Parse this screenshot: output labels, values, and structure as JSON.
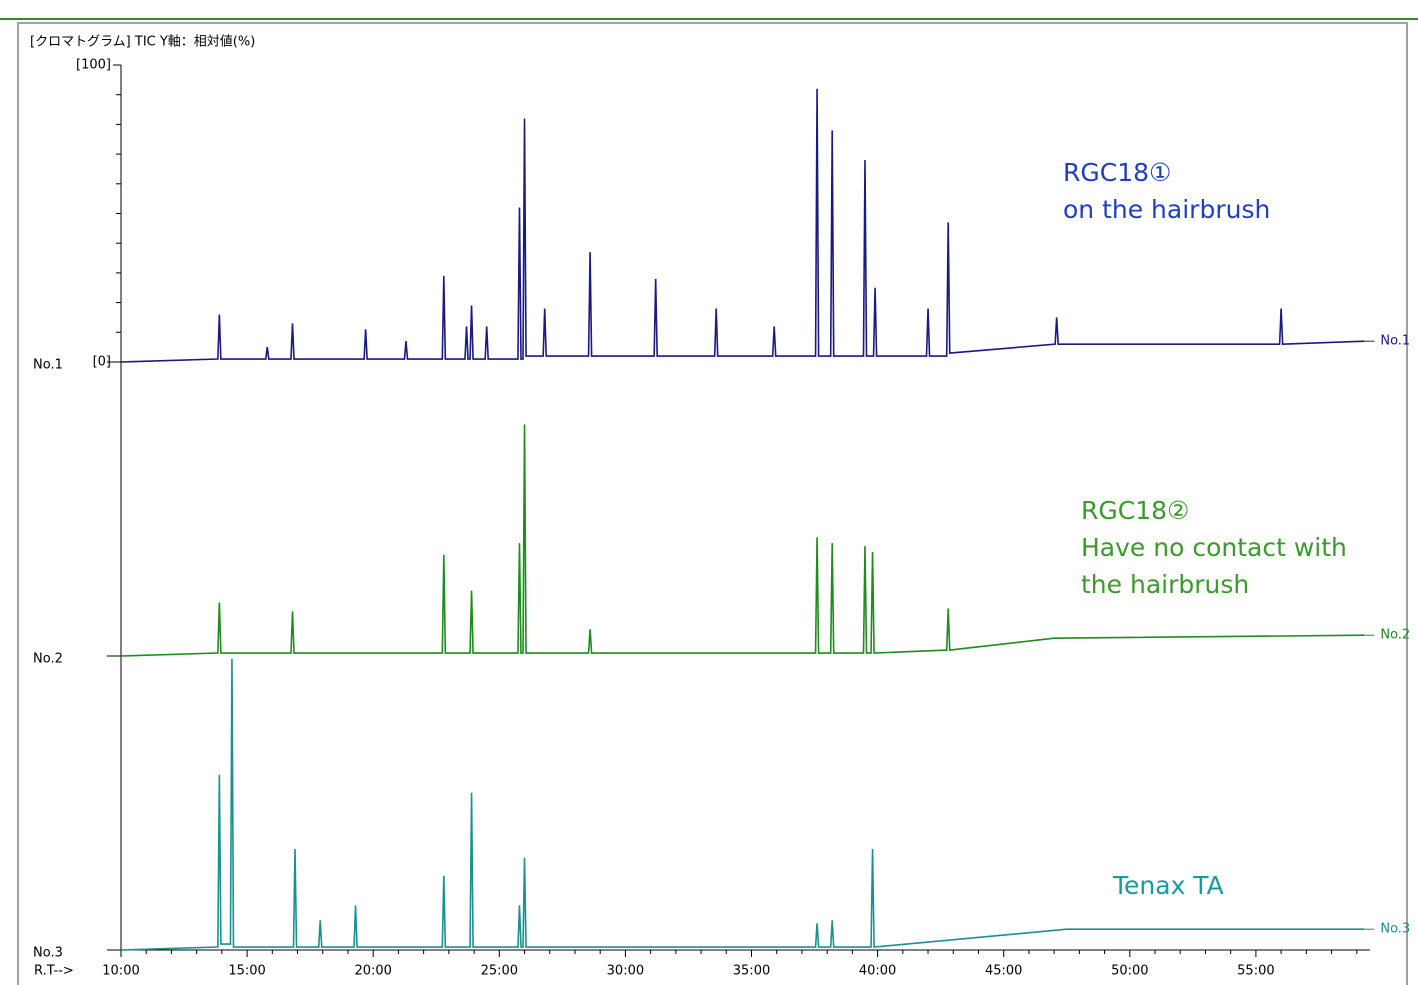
{
  "chart_data": {
    "type": "line",
    "title": "[クロマトグラム]  TIC   Y軸：相対値(%)",
    "x_label": "R.T-->",
    "xlim": [
      10,
      59.4
    ],
    "xticks": [
      {
        "value": 10,
        "label": "10:00"
      },
      {
        "value": 15,
        "label": "15:00"
      },
      {
        "value": 20,
        "label": "20:00"
      },
      {
        "value": 25,
        "label": "25:00"
      },
      {
        "value": 30,
        "label": "30:00"
      },
      {
        "value": 35,
        "label": "35:00"
      },
      {
        "value": 40,
        "label": "40:00"
      },
      {
        "value": 45,
        "label": "45:00"
      },
      {
        "value": 50,
        "label": "50:00"
      },
      {
        "value": 55,
        "label": "55:00"
      }
    ],
    "xminor": [
      11,
      12,
      13,
      14,
      16,
      17,
      18,
      19,
      21,
      22,
      23,
      24,
      26,
      27,
      28,
      29,
      31,
      32,
      33,
      34,
      36,
      37,
      38,
      39,
      41,
      42,
      43,
      44,
      46,
      47,
      48,
      49,
      51,
      52,
      53,
      54,
      56,
      57,
      58,
      59
    ],
    "ylim": [
      0,
      100
    ],
    "yticks": [
      {
        "value": 0,
        "label": "[0]"
      },
      {
        "value": 100,
        "label": "[100]"
      }
    ],
    "yminor": [
      10,
      20,
      30,
      40,
      50,
      60,
      70,
      80,
      90
    ],
    "series": [
      {
        "name": "No.1",
        "color": "#1a1a80",
        "x": [
          10,
          13.84,
          13.9,
          13.96,
          15.74,
          15.8,
          15.86,
          16.74,
          16.8,
          16.86,
          19.64,
          19.7,
          19.76,
          21.24,
          21.3,
          21.36,
          22.74,
          22.8,
          22.86,
          23.64,
          23.7,
          23.76,
          23.84,
          23.9,
          23.96,
          24.44,
          24.5,
          24.56,
          25.74,
          25.8,
          25.86,
          25.94,
          26.0,
          26.06,
          26.74,
          26.8,
          26.86,
          28.54,
          28.6,
          28.66,
          31.14,
          31.2,
          31.26,
          33.54,
          33.6,
          33.66,
          35.84,
          35.9,
          35.96,
          37.54,
          37.6,
          37.66,
          38.14,
          38.2,
          38.26,
          39.44,
          39.5,
          39.56,
          39.84,
          39.9,
          39.96,
          41.94,
          42.0,
          42.06,
          42.74,
          42.8,
          42.86,
          47.04,
          47.1,
          47.16,
          55.94,
          56.0,
          56.06,
          59.3
        ],
        "values": [
          0,
          1,
          16,
          1,
          1,
          5,
          1,
          1,
          13,
          1,
          1,
          11,
          1,
          1,
          7,
          1,
          1,
          29,
          1,
          1,
          12,
          1,
          1,
          19,
          1,
          1,
          12,
          1,
          1,
          52,
          1,
          1,
          82,
          2,
          2,
          18,
          2,
          2,
          37,
          2,
          2,
          28,
          2,
          2,
          18,
          2,
          2,
          12,
          2,
          2,
          92,
          2,
          2,
          78,
          2,
          2,
          68,
          2,
          2,
          25,
          2,
          2,
          18,
          2,
          2,
          47,
          3,
          6,
          15,
          6,
          6,
          18,
          6,
          7
        ]
      },
      {
        "name": "No.2",
        "color": "#1e8c1e",
        "x": [
          10,
          13.84,
          13.9,
          13.96,
          16.74,
          16.8,
          16.86,
          22.74,
          22.8,
          22.86,
          23.84,
          23.9,
          23.96,
          25.74,
          25.8,
          25.86,
          25.94,
          26.0,
          26.06,
          28.54,
          28.6,
          28.66,
          37.54,
          37.6,
          37.66,
          38.14,
          38.2,
          38.26,
          39.44,
          39.5,
          39.56,
          39.74,
          39.8,
          39.86,
          42.74,
          42.8,
          42.86,
          47,
          59.3
        ],
        "values": [
          0,
          1,
          18,
          1,
          1,
          15,
          1,
          1,
          34,
          1,
          1,
          22,
          1,
          1,
          38,
          1,
          1,
          78,
          1,
          1,
          9,
          1,
          1,
          40,
          1,
          1,
          38,
          1,
          1,
          37,
          1,
          1,
          35,
          1,
          2,
          16,
          2,
          6,
          7
        ]
      },
      {
        "name": "No.3",
        "color": "#1a9090",
        "x": [
          10,
          13.84,
          13.9,
          13.96,
          14.34,
          14.4,
          14.46,
          16.84,
          16.9,
          16.96,
          17.84,
          17.9,
          17.96,
          19.24,
          19.3,
          19.36,
          22.74,
          22.8,
          22.86,
          23.84,
          23.9,
          23.96,
          25.74,
          25.8,
          25.86,
          25.94,
          26.0,
          26.06,
          37.54,
          37.6,
          37.66,
          38.14,
          38.2,
          38.26,
          39.74,
          39.8,
          39.86,
          47.5,
          59.3
        ],
        "values": [
          0,
          1,
          59,
          2,
          2,
          98,
          1,
          1,
          34,
          1,
          1,
          10,
          1,
          1,
          15,
          1,
          1,
          25,
          1,
          1,
          53,
          1,
          1,
          15,
          1,
          1,
          31,
          1,
          1,
          9,
          1,
          1,
          10,
          1,
          1,
          34,
          1,
          7,
          7
        ]
      }
    ],
    "annotations": [
      {
        "lines": [
          "RGC18①",
          "on the hairbrush"
        ],
        "color": "#1f3fbf"
      },
      {
        "lines": [
          "RGC18②",
          "Have no contact with",
          "the hairbrush"
        ],
        "color": "#3a9a2a"
      },
      {
        "lines": [
          "Tenax TA"
        ],
        "color": "#1a9aa0"
      }
    ]
  }
}
